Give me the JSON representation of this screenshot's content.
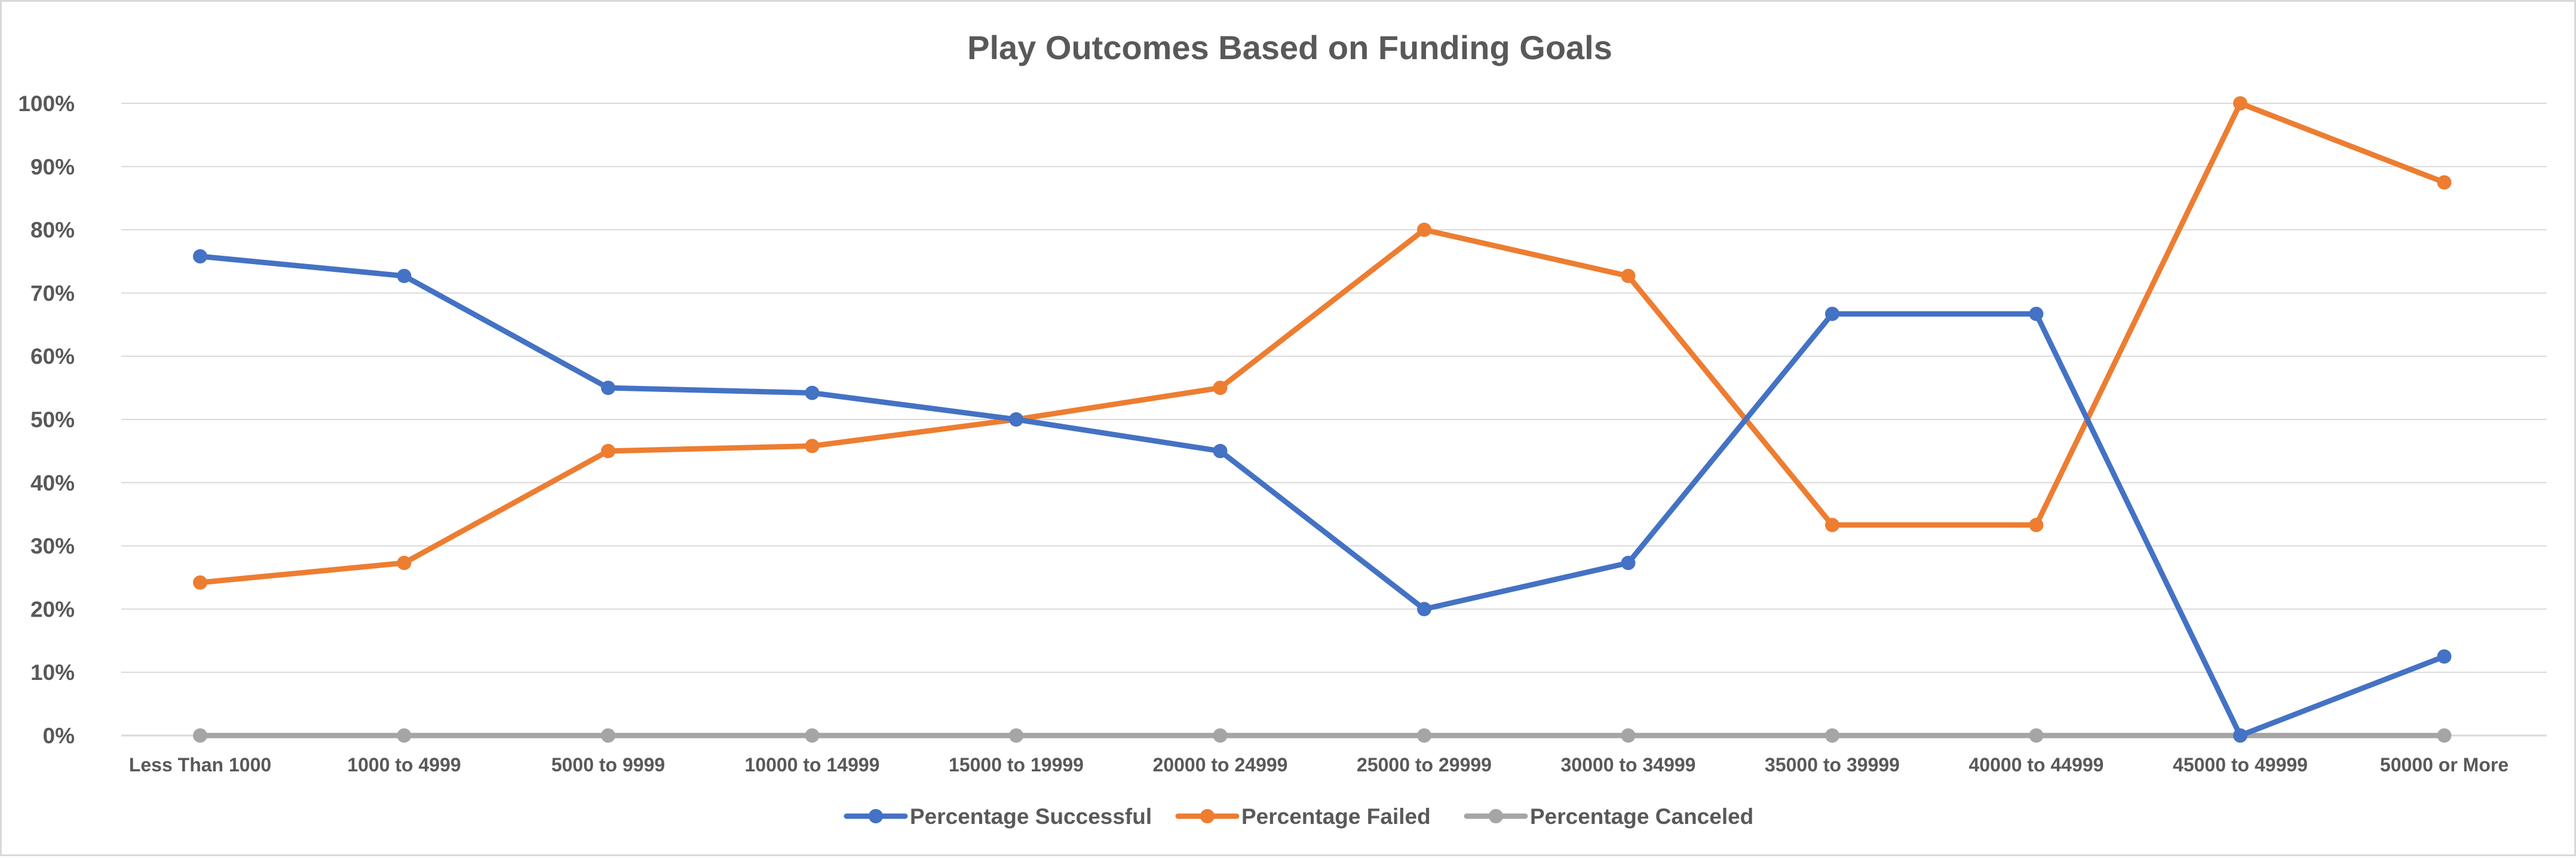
{
  "chart_data": {
    "type": "line",
    "title": "Play Outcomes Based on Funding Goals",
    "xlabel": "",
    "ylabel": "",
    "categories": [
      "Less Than 1000",
      "1000 to 4999",
      "5000 to 9999",
      "10000 to 14999",
      "15000 to 19999",
      "20000 to 24999",
      "25000 to 29999",
      "30000 to 34999",
      "35000 to 39999",
      "40000 to 44999",
      "45000 to 49999",
      "50000 or More"
    ],
    "yticks": [
      "0%",
      "10%",
      "20%",
      "30%",
      "40%",
      "50%",
      "60%",
      "70%",
      "80%",
      "90%",
      "100%"
    ],
    "ylim": [
      0,
      100
    ],
    "y_unit": "%",
    "grid": true,
    "legend_position": "bottom",
    "series": [
      {
        "name": "Percentage Successful",
        "color": "#4472c4",
        "values": [
          75.8,
          72.7,
          55.0,
          54.2,
          50.0,
          45.0,
          20.0,
          27.3,
          66.7,
          66.7,
          0.0,
          12.5
        ]
      },
      {
        "name": "Percentage Failed",
        "color": "#ed7d31",
        "values": [
          24.2,
          27.3,
          45.0,
          45.8,
          50.0,
          55.0,
          80.0,
          72.7,
          33.3,
          33.3,
          100.0,
          87.5
        ]
      },
      {
        "name": "Percentage Canceled",
        "color": "#a5a5a5",
        "values": [
          0,
          0,
          0,
          0,
          0,
          0,
          0,
          0,
          0,
          0,
          0,
          0
        ]
      }
    ]
  }
}
